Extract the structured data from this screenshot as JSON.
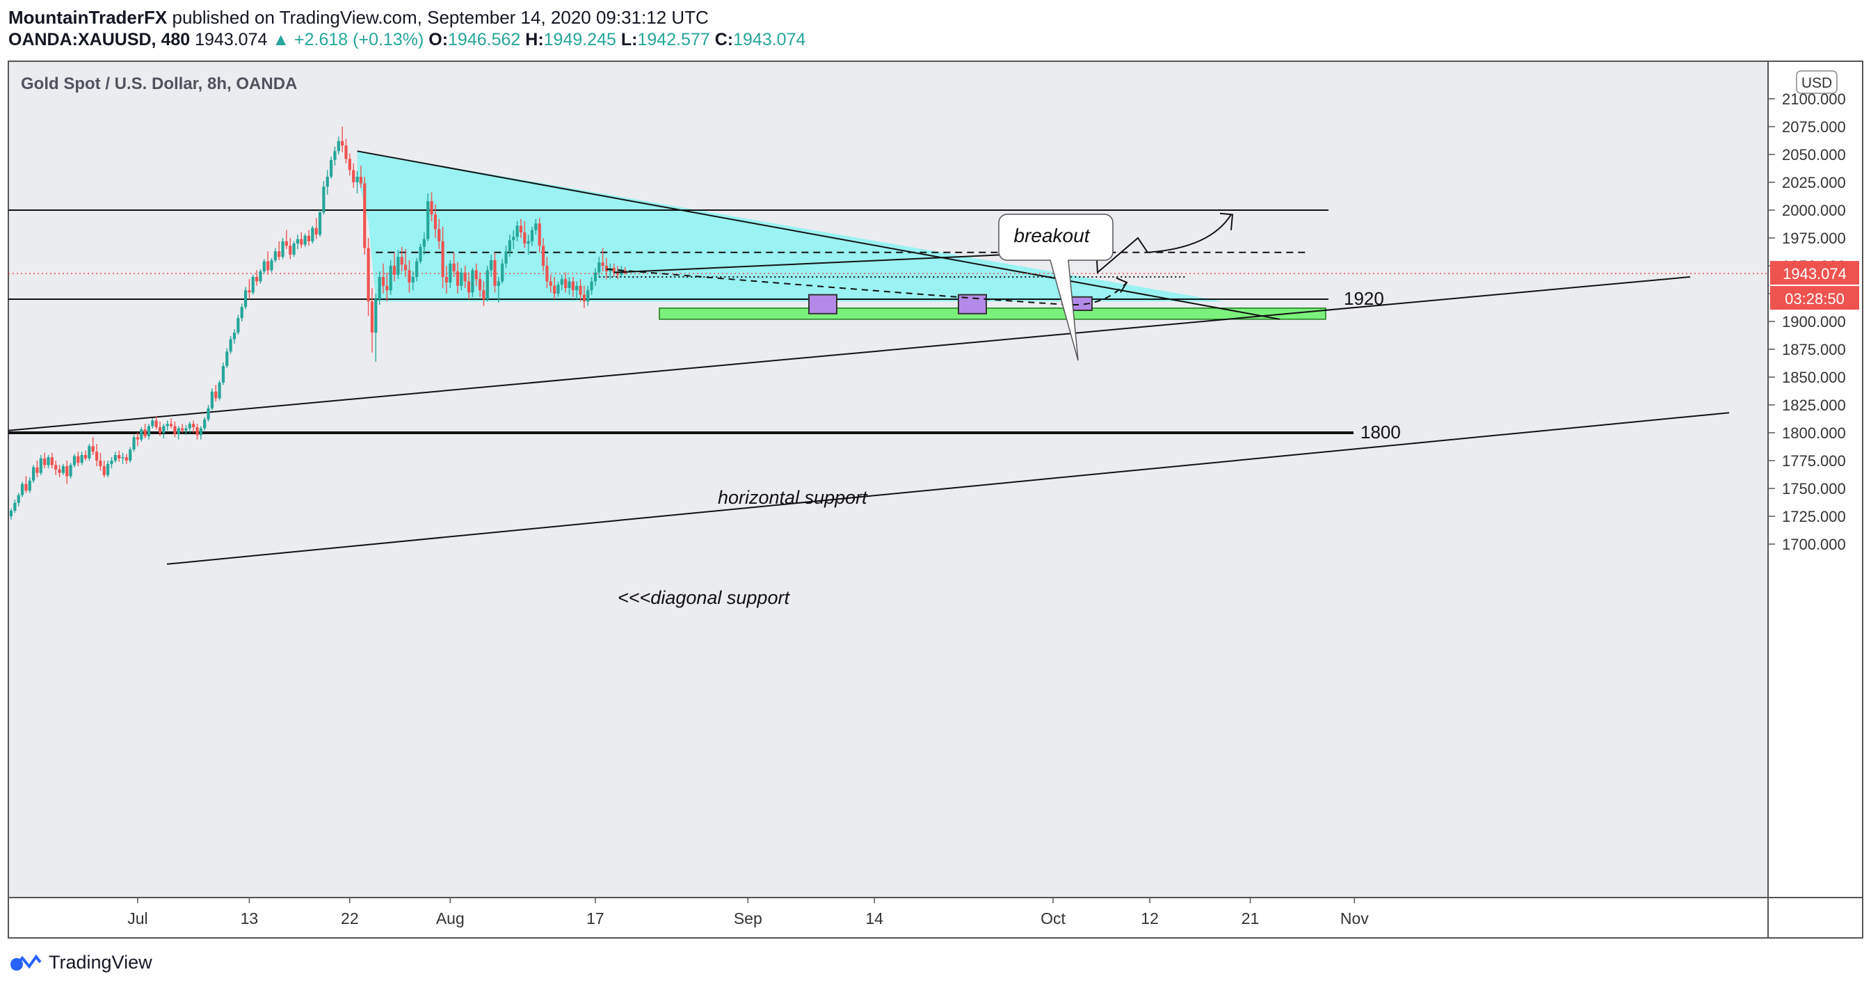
{
  "header": {
    "author": "MountainTraderFX",
    "published": "published on TradingView.com, September 14, 2020 09:31:12 UTC"
  },
  "ohlc": {
    "symbol": "OANDA:XAUUSD, 480",
    "price": "1943.074",
    "change": "▲ +2.618 (+0.13%)",
    "o_label": "O:",
    "o": "1946.562",
    "h_label": "H:",
    "h": "1949.245",
    "l_label": "L:",
    "l": "1942.577",
    "c_label": "C:",
    "c": "1943.074"
  },
  "footer": {
    "brand": "TradingView"
  },
  "chart_data": {
    "type": "candlestick",
    "title": "Gold Spot / U.S. Dollar, 8h, OANDA",
    "currency": "USD",
    "ylim": [
      1680,
      2110
    ],
    "y_ticks": [
      {
        "v": 2100,
        "l": "2100.000"
      },
      {
        "v": 2075,
        "l": "2075.000"
      },
      {
        "v": 2050,
        "l": "2050.000"
      },
      {
        "v": 2025,
        "l": "2025.000"
      },
      {
        "v": 2000,
        "l": "2000.000"
      },
      {
        "v": 1975,
        "l": "1975.000"
      },
      {
        "v": 1950,
        "l": "1950.000"
      },
      {
        "v": 1925,
        "l": "1925.000"
      },
      {
        "v": 1900,
        "l": "1900.000"
      },
      {
        "v": 1875,
        "l": "1875.000"
      },
      {
        "v": 1850,
        "l": "1850.000"
      },
      {
        "v": 1825,
        "l": "1825.000"
      },
      {
        "v": 1800,
        "l": "1800.000"
      },
      {
        "v": 1775,
        "l": "1775.000"
      },
      {
        "v": 1750,
        "l": "1750.000"
      },
      {
        "v": 1725,
        "l": "1725.000"
      },
      {
        "v": 1700,
        "l": "1700.000"
      }
    ],
    "x_ticks": [
      {
        "i": 34,
        "l": "Jul"
      },
      {
        "i": 64,
        "l": "13"
      },
      {
        "i": 91,
        "l": "22"
      },
      {
        "i": 118,
        "l": "Aug"
      },
      {
        "i": 157,
        "l": "17"
      },
      {
        "i": 198,
        "l": "Sep"
      },
      {
        "i": 232,
        "l": "14"
      },
      {
        "i": 280,
        "l": "Oct"
      },
      {
        "i": 306,
        "l": "12"
      },
      {
        "i": 333,
        "l": "21"
      },
      {
        "i": 361,
        "l": "Nov"
      }
    ],
    "last_price": {
      "value": 1943.074,
      "label": "1943.074",
      "countdown": "03:28:50"
    },
    "levels": [
      {
        "value": 2000,
        "label": ""
      },
      {
        "value": 1920,
        "label": "1920"
      },
      {
        "value": 1800,
        "label": "1800"
      }
    ],
    "annotations": {
      "breakout": "breakout",
      "horizontal_support": "horizontal support",
      "diagonal_support": "<<<diagonal support"
    },
    "colors": {
      "up": "#26a69a",
      "down": "#ef5350",
      "triangle": "#9af2f2",
      "zone": "#7cf07c",
      "marker": "#b48ae8",
      "last": "#ef5350"
    },
    "ohlc": [
      [
        1725,
        1732,
        1722,
        1730
      ],
      [
        1730,
        1740,
        1728,
        1737
      ],
      [
        1737,
        1746,
        1734,
        1744
      ],
      [
        1744,
        1756,
        1742,
        1754
      ],
      [
        1754,
        1761,
        1746,
        1748
      ],
      [
        1748,
        1760,
        1746,
        1757
      ],
      [
        1757,
        1771,
        1755,
        1769
      ],
      [
        1769,
        1775,
        1760,
        1764
      ],
      [
        1764,
        1780,
        1762,
        1777
      ],
      [
        1777,
        1782,
        1768,
        1771
      ],
      [
        1771,
        1780,
        1768,
        1778
      ],
      [
        1778,
        1782,
        1768,
        1771
      ],
      [
        1771,
        1775,
        1762,
        1767
      ],
      [
        1767,
        1771,
        1760,
        1764
      ],
      [
        1764,
        1772,
        1762,
        1770
      ],
      [
        1770,
        1775,
        1754,
        1761
      ],
      [
        1761,
        1773,
        1759,
        1771
      ],
      [
        1771,
        1781,
        1769,
        1779
      ],
      [
        1779,
        1783,
        1770,
        1773
      ],
      [
        1773,
        1783,
        1771,
        1780
      ],
      [
        1780,
        1784,
        1775,
        1777
      ],
      [
        1777,
        1790,
        1775,
        1788
      ],
      [
        1788,
        1796,
        1780,
        1783
      ],
      [
        1783,
        1790,
        1770,
        1775
      ],
      [
        1775,
        1782,
        1766,
        1770
      ],
      [
        1770,
        1775,
        1760,
        1762
      ],
      [
        1762,
        1775,
        1760,
        1772
      ],
      [
        1772,
        1778,
        1768,
        1775
      ],
      [
        1775,
        1783,
        1773,
        1780
      ],
      [
        1780,
        1784,
        1774,
        1777
      ],
      [
        1777,
        1782,
        1772,
        1778
      ],
      [
        1778,
        1781,
        1772,
        1775
      ],
      [
        1775,
        1787,
        1773,
        1785
      ],
      [
        1785,
        1798,
        1783,
        1796
      ],
      [
        1796,
        1800,
        1788,
        1794
      ],
      [
        1794,
        1805,
        1792,
        1803
      ],
      [
        1803,
        1808,
        1795,
        1797
      ],
      [
        1797,
        1808,
        1794,
        1806
      ],
      [
        1806,
        1813,
        1804,
        1811
      ],
      [
        1811,
        1815,
        1803,
        1805
      ],
      [
        1805,
        1810,
        1797,
        1800
      ],
      [
        1800,
        1808,
        1795,
        1806
      ],
      [
        1806,
        1811,
        1802,
        1808
      ],
      [
        1808,
        1813,
        1804,
        1806
      ],
      [
        1806,
        1810,
        1796,
        1799
      ],
      [
        1799,
        1806,
        1794,
        1804
      ],
      [
        1804,
        1808,
        1800,
        1802
      ],
      [
        1802,
        1807,
        1798,
        1804
      ],
      [
        1804,
        1810,
        1800,
        1808
      ],
      [
        1808,
        1811,
        1800,
        1805
      ],
      [
        1805,
        1808,
        1794,
        1798
      ],
      [
        1798,
        1806,
        1794,
        1804
      ],
      [
        1804,
        1814,
        1802,
        1812
      ],
      [
        1812,
        1825,
        1810,
        1822
      ],
      [
        1822,
        1840,
        1820,
        1837
      ],
      [
        1837,
        1843,
        1828,
        1831
      ],
      [
        1831,
        1847,
        1829,
        1845
      ],
      [
        1845,
        1863,
        1843,
        1860
      ],
      [
        1860,
        1876,
        1858,
        1873
      ],
      [
        1873,
        1887,
        1871,
        1884
      ],
      [
        1884,
        1893,
        1880,
        1890
      ],
      [
        1890,
        1906,
        1888,
        1903
      ],
      [
        1903,
        1916,
        1900,
        1913
      ],
      [
        1913,
        1931,
        1911,
        1928
      ],
      [
        1928,
        1938,
        1920,
        1926
      ],
      [
        1926,
        1942,
        1924,
        1940
      ],
      [
        1940,
        1946,
        1932,
        1936
      ],
      [
        1936,
        1947,
        1934,
        1945
      ],
      [
        1945,
        1956,
        1943,
        1954
      ],
      [
        1954,
        1963,
        1942,
        1946
      ],
      [
        1946,
        1957,
        1944,
        1955
      ],
      [
        1955,
        1966,
        1953,
        1963
      ],
      [
        1963,
        1972,
        1955,
        1958
      ],
      [
        1958,
        1975,
        1956,
        1972
      ],
      [
        1972,
        1982,
        1965,
        1968
      ],
      [
        1968,
        1975,
        1956,
        1960
      ],
      [
        1960,
        1972,
        1958,
        1970
      ],
      [
        1970,
        1978,
        1965,
        1974
      ],
      [
        1974,
        1980,
        1966,
        1969
      ],
      [
        1969,
        1979,
        1967,
        1977
      ],
      [
        1977,
        1982,
        1968,
        1972
      ],
      [
        1972,
        1986,
        1970,
        1984
      ],
      [
        1984,
        1993,
        1974,
        1978
      ],
      [
        1978,
        2000,
        1976,
        1998
      ],
      [
        1998,
        2026,
        1996,
        2021
      ],
      [
        2021,
        2036,
        2014,
        2030
      ],
      [
        2030,
        2048,
        2028,
        2045
      ],
      [
        2045,
        2057,
        2040,
        2053
      ],
      [
        2053,
        2066,
        2050,
        2062
      ],
      [
        2062,
        2075,
        2052,
        2058
      ],
      [
        2058,
        2064,
        2042,
        2046
      ],
      [
        2046,
        2051,
        2031,
        2036
      ],
      [
        2036,
        2042,
        2020,
        2025
      ],
      [
        2025,
        2035,
        2015,
        2030
      ],
      [
        2030,
        2040,
        2020,
        2024
      ],
      [
        2024,
        2030,
        1960,
        1966
      ],
      [
        1966,
        1975,
        1905,
        1918
      ],
      [
        1918,
        1930,
        1872,
        1890
      ],
      [
        1890,
        1925,
        1864,
        1920
      ],
      [
        1920,
        1945,
        1915,
        1940
      ],
      [
        1940,
        1952,
        1925,
        1932
      ],
      [
        1932,
        1944,
        1918,
        1928
      ],
      [
        1928,
        1955,
        1924,
        1950
      ],
      [
        1950,
        1962,
        1936,
        1942
      ],
      [
        1942,
        1964,
        1938,
        1958
      ],
      [
        1958,
        1967,
        1945,
        1951
      ],
      [
        1951,
        1965,
        1940,
        1946
      ],
      [
        1946,
        1955,
        1926,
        1935
      ],
      [
        1935,
        1945,
        1928,
        1940
      ],
      [
        1940,
        1957,
        1936,
        1954
      ],
      [
        1954,
        1970,
        1952,
        1967
      ],
      [
        1967,
        1980,
        1960,
        1974
      ],
      [
        1974,
        2015,
        1972,
        2008
      ],
      [
        2008,
        2016,
        1990,
        1996
      ],
      [
        1996,
        2005,
        1975,
        1983
      ],
      [
        1983,
        1992,
        1965,
        1972
      ],
      [
        1972,
        1985,
        1930,
        1940
      ],
      [
        1940,
        1950,
        1925,
        1935
      ],
      [
        1935,
        1955,
        1930,
        1952
      ],
      [
        1952,
        1962,
        1940,
        1945
      ],
      [
        1945,
        1953,
        1925,
        1932
      ],
      [
        1932,
        1948,
        1928,
        1944
      ],
      [
        1944,
        1950,
        1930,
        1936
      ],
      [
        1936,
        1944,
        1920,
        1926
      ],
      [
        1926,
        1948,
        1922,
        1946
      ],
      [
        1946,
        1952,
        1932,
        1938
      ],
      [
        1938,
        1944,
        1922,
        1928
      ],
      [
        1928,
        1936,
        1914,
        1920
      ],
      [
        1920,
        1950,
        1918,
        1946
      ],
      [
        1946,
        1960,
        1940,
        1955
      ],
      [
        1955,
        1962,
        1926,
        1932
      ],
      [
        1932,
        1940,
        1917,
        1936
      ],
      [
        1936,
        1956,
        1934,
        1952
      ],
      [
        1952,
        1968,
        1948,
        1963
      ],
      [
        1963,
        1978,
        1958,
        1973
      ],
      [
        1973,
        1982,
        1965,
        1976
      ],
      [
        1976,
        1990,
        1972,
        1986
      ],
      [
        1986,
        1992,
        1975,
        1980
      ],
      [
        1980,
        1990,
        1966,
        1970
      ],
      [
        1970,
        1978,
        1960,
        1972
      ],
      [
        1972,
        1985,
        1968,
        1982
      ],
      [
        1982,
        1992,
        1978,
        1988
      ],
      [
        1988,
        1993,
        1962,
        1968
      ],
      [
        1968,
        1975,
        1945,
        1950
      ],
      [
        1950,
        1958,
        1930,
        1936
      ],
      [
        1936,
        1942,
        1926,
        1932
      ],
      [
        1932,
        1940,
        1920,
        1925
      ],
      [
        1925,
        1936,
        1922,
        1933
      ],
      [
        1933,
        1942,
        1928,
        1938
      ],
      [
        1938,
        1944,
        1926,
        1930
      ],
      [
        1930,
        1940,
        1924,
        1936
      ],
      [
        1936,
        1940,
        1922,
        1928
      ],
      [
        1928,
        1936,
        1920,
        1932
      ],
      [
        1932,
        1938,
        1918,
        1924
      ],
      [
        1924,
        1932,
        1912,
        1918
      ],
      [
        1918,
        1932,
        1914,
        1928
      ],
      [
        1928,
        1940,
        1924,
        1936
      ],
      [
        1936,
        1948,
        1932,
        1944
      ],
      [
        1944,
        1958,
        1940,
        1953
      ],
      [
        1953,
        1966,
        1945,
        1950
      ],
      [
        1950,
        1957,
        1938,
        1945
      ],
      [
        1945,
        1952,
        1938,
        1948
      ],
      [
        1948,
        1952,
        1940,
        1944
      ],
      [
        1944,
        1950,
        1938,
        1942
      ],
      [
        1942,
        1950,
        1940,
        1946
      ],
      [
        1946,
        1949,
        1942,
        1943
      ]
    ],
    "offset_i": 0
  }
}
